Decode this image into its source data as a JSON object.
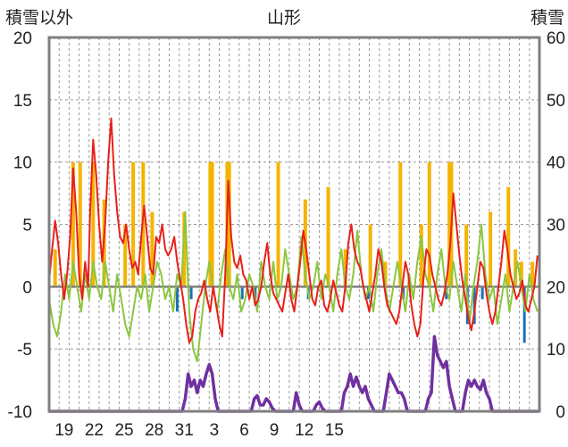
{
  "chart_data": {
    "type": "line",
    "title": "山形",
    "left_axis_label": "積雪以外",
    "right_axis_label": "積雪",
    "y_left": {
      "range": [
        -10,
        20
      ],
      "ticks": [
        "20",
        "15",
        "10",
        "5",
        "0",
        "-5",
        "-10"
      ]
    },
    "y_right": {
      "range": [
        0,
        60
      ],
      "ticks": [
        "60",
        "50",
        "40",
        "30",
        "20",
        "10",
        "0"
      ]
    },
    "x_day_ticks": [
      "19",
      "22",
      "25",
      "28",
      "31",
      "3",
      "6",
      "9",
      "12",
      "15"
    ],
    "grid": {
      "horizontal": "dashed",
      "vertical": "dashed-daily"
    },
    "colors": {
      "temperature": "#e8201a",
      "precip_yellow": "#f5b400",
      "precip_blue": "#1f6fb5",
      "green": "#8cc63f",
      "snow_depth": "#7030a0",
      "frame": "#7f7f7f"
    },
    "temperature_red": [
      [
        0,
        0.5
      ],
      [
        0.3,
        3
      ],
      [
        0.6,
        5.3
      ],
      [
        0.9,
        3.5
      ],
      [
        1.2,
        1
      ],
      [
        1.5,
        -1
      ],
      [
        1.8,
        1
      ],
      [
        2.1,
        4
      ],
      [
        2.4,
        9.5
      ],
      [
        2.7,
        6
      ],
      [
        3.0,
        1
      ],
      [
        3.3,
        -1
      ],
      [
        3.6,
        2
      ],
      [
        3.9,
        0
      ],
      [
        4.1,
        6
      ],
      [
        4.4,
        11.8
      ],
      [
        4.7,
        9
      ],
      [
        5.0,
        5
      ],
      [
        5.3,
        2
      ],
      [
        5.6,
        5
      ],
      [
        5.9,
        10
      ],
      [
        6.2,
        13.5
      ],
      [
        6.5,
        9
      ],
      [
        6.8,
        6
      ],
      [
        7.1,
        4
      ],
      [
        7.4,
        3.5
      ],
      [
        7.7,
        5
      ],
      [
        8.0,
        3
      ],
      [
        8.3,
        1.5
      ],
      [
        8.6,
        2
      ],
      [
        8.9,
        1
      ],
      [
        9.2,
        4
      ],
      [
        9.5,
        6.5
      ],
      [
        9.8,
        4
      ],
      [
        10.1,
        1.5
      ],
      [
        10.4,
        1
      ],
      [
        10.7,
        4
      ],
      [
        11.0,
        3.5
      ],
      [
        11.3,
        5
      ],
      [
        11.6,
        3
      ],
      [
        11.9,
        2.5
      ],
      [
        12.2,
        3
      ],
      [
        12.5,
        4
      ],
      [
        12.8,
        2
      ],
      [
        13.1,
        0.5
      ],
      [
        13.4,
        -1
      ],
      [
        13.7,
        -3
      ],
      [
        14.0,
        -4.5
      ],
      [
        14.3,
        -4
      ],
      [
        14.6,
        -2
      ],
      [
        14.9,
        -1
      ],
      [
        15.2,
        -0.5
      ],
      [
        15.5,
        0.5
      ],
      [
        15.8,
        -1
      ],
      [
        16.1,
        -2
      ],
      [
        16.4,
        0
      ],
      [
        16.7,
        -1.5
      ],
      [
        17.0,
        -3
      ],
      [
        17.3,
        -4
      ],
      [
        17.6,
        1
      ],
      [
        17.9,
        8.5
      ],
      [
        18.2,
        4
      ],
      [
        18.5,
        2
      ],
      [
        18.8,
        1.5
      ],
      [
        19.1,
        2.5
      ],
      [
        19.4,
        1
      ],
      [
        19.7,
        0.5
      ],
      [
        20.0,
        -1
      ],
      [
        20.3,
        0
      ],
      [
        20.6,
        -1.5
      ],
      [
        20.9,
        -1
      ],
      [
        21.2,
        0
      ],
      [
        21.5,
        2
      ],
      [
        21.8,
        3.5
      ],
      [
        22.1,
        1
      ],
      [
        22.4,
        -0.5
      ],
      [
        22.7,
        -1
      ],
      [
        23.0,
        -1.5
      ],
      [
        23.3,
        -2
      ],
      [
        23.6,
        -0.5
      ],
      [
        23.9,
        1
      ],
      [
        24.2,
        -1
      ],
      [
        24.5,
        -2
      ],
      [
        24.8,
        0
      ],
      [
        25.1,
        2
      ],
      [
        25.4,
        4.5
      ],
      [
        25.7,
        3
      ],
      [
        26.0,
        1
      ],
      [
        26.3,
        -1
      ],
      [
        26.6,
        -1.5
      ],
      [
        26.9,
        0
      ],
      [
        27.2,
        0.5
      ],
      [
        27.5,
        -1.5
      ],
      [
        27.8,
        -2
      ],
      [
        28.1,
        -1
      ],
      [
        28.4,
        0.5
      ],
      [
        28.7,
        -0.5
      ],
      [
        29.0,
        -1.5
      ],
      [
        29.3,
        -2
      ],
      [
        29.6,
        0
      ],
      [
        29.9,
        3.5
      ],
      [
        30.2,
        5
      ],
      [
        30.5,
        3
      ],
      [
        30.8,
        2
      ],
      [
        31.1,
        1.5
      ],
      [
        31.4,
        0
      ],
      [
        31.7,
        -1
      ],
      [
        32.0,
        -2
      ],
      [
        32.3,
        -0.5
      ],
      [
        32.6,
        1
      ],
      [
        32.9,
        3
      ],
      [
        33.2,
        2
      ],
      [
        33.5,
        0
      ],
      [
        33.8,
        -1.5
      ],
      [
        34.1,
        -2
      ],
      [
        34.4,
        -2.5
      ],
      [
        34.7,
        -3
      ],
      [
        35.0,
        -2
      ],
      [
        35.3,
        0
      ],
      [
        35.6,
        2
      ],
      [
        35.9,
        1
      ],
      [
        36.2,
        -1.5
      ],
      [
        36.5,
        -3
      ],
      [
        36.8,
        -4
      ],
      [
        37.1,
        -3
      ],
      [
        37.4,
        0.5
      ],
      [
        37.7,
        3
      ],
      [
        38.0,
        2.5
      ],
      [
        38.3,
        1
      ],
      [
        38.6,
        0
      ],
      [
        38.9,
        -1
      ],
      [
        39.2,
        -1.5
      ],
      [
        39.5,
        -0.5
      ],
      [
        39.8,
        1
      ],
      [
        40.1,
        3.5
      ],
      [
        40.4,
        7.5
      ],
      [
        40.7,
        5
      ],
      [
        41.0,
        2.5
      ],
      [
        41.3,
        0.5
      ],
      [
        41.6,
        -1
      ],
      [
        41.9,
        -2.5
      ],
      [
        42.2,
        -3.5
      ],
      [
        42.5,
        -2
      ],
      [
        42.8,
        0
      ],
      [
        43.1,
        2
      ],
      [
        43.4,
        1.5
      ],
      [
        43.7,
        -0.5
      ],
      [
        44.0,
        -2
      ],
      [
        44.3,
        -3
      ],
      [
        44.6,
        -2
      ],
      [
        44.9,
        0
      ],
      [
        45.2,
        2
      ],
      [
        45.5,
        4.5
      ],
      [
        45.8,
        3
      ],
      [
        46.1,
        1
      ],
      [
        46.4,
        0
      ],
      [
        46.7,
        -1
      ],
      [
        47.0,
        -0.5
      ],
      [
        47.3,
        0.5
      ],
      [
        47.6,
        -1.5
      ],
      [
        47.9,
        -2
      ],
      [
        48.2,
        -1
      ],
      [
        48.5,
        0
      ],
      [
        48.8,
        2.5
      ]
    ],
    "green_series": [
      [
        0,
        -1
      ],
      [
        0.4,
        -3
      ],
      [
        0.8,
        -4
      ],
      [
        1.2,
        -2
      ],
      [
        1.6,
        1
      ],
      [
        2.0,
        -1
      ],
      [
        2.4,
        2
      ],
      [
        2.8,
        0
      ],
      [
        3.2,
        -2
      ],
      [
        3.6,
        1
      ],
      [
        4.0,
        -1
      ],
      [
        4.4,
        2
      ],
      [
        4.8,
        0
      ],
      [
        5.2,
        -1
      ],
      [
        5.6,
        2
      ],
      [
        6.0,
        0
      ],
      [
        6.4,
        -2
      ],
      [
        6.8,
        1
      ],
      [
        7.2,
        -1
      ],
      [
        7.6,
        -3
      ],
      [
        8.0,
        -4
      ],
      [
        8.4,
        -2
      ],
      [
        8.8,
        0
      ],
      [
        9.2,
        -1
      ],
      [
        9.6,
        1
      ],
      [
        10.0,
        -2
      ],
      [
        10.4,
        0
      ],
      [
        10.8,
        2
      ],
      [
        11.2,
        1
      ],
      [
        11.6,
        -1
      ],
      [
        12.0,
        0
      ],
      [
        12.4,
        -2
      ],
      [
        12.8,
        1
      ],
      [
        13.2,
        0
      ],
      [
        13.6,
        6
      ],
      [
        14.0,
        -2
      ],
      [
        14.4,
        -5
      ],
      [
        14.8,
        -6
      ],
      [
        15.2,
        -3
      ],
      [
        15.6,
        0
      ],
      [
        16.0,
        2
      ],
      [
        16.4,
        0
      ],
      [
        16.8,
        -2
      ],
      [
        17.2,
        1
      ],
      [
        17.6,
        3
      ],
      [
        18.0,
        0
      ],
      [
        18.4,
        -1
      ],
      [
        18.8,
        1
      ],
      [
        19.2,
        -2
      ],
      [
        19.6,
        -1
      ],
      [
        20.0,
        1
      ],
      [
        20.4,
        0
      ],
      [
        20.8,
        -2
      ],
      [
        21.2,
        2
      ],
      [
        21.6,
        0
      ],
      [
        22.0,
        -1
      ],
      [
        22.4,
        2
      ],
      [
        22.8,
        -1
      ],
      [
        23.2,
        0
      ],
      [
        23.6,
        3
      ],
      [
        24.0,
        1
      ],
      [
        24.4,
        -1
      ],
      [
        24.8,
        0
      ],
      [
        25.2,
        4
      ],
      [
        25.6,
        1
      ],
      [
        26.0,
        -1
      ],
      [
        26.4,
        0
      ],
      [
        26.8,
        2
      ],
      [
        27.2,
        -1
      ],
      [
        27.6,
        1
      ],
      [
        28.0,
        0
      ],
      [
        28.4,
        -2
      ],
      [
        28.8,
        1
      ],
      [
        29.2,
        3
      ],
      [
        29.6,
        0
      ],
      [
        30.0,
        -1
      ],
      [
        30.4,
        1
      ],
      [
        30.8,
        4.5
      ],
      [
        31.2,
        1
      ],
      [
        31.6,
        -1
      ],
      [
        32.0,
        0
      ],
      [
        32.4,
        -2
      ],
      [
        32.8,
        1
      ],
      [
        33.2,
        3
      ],
      [
        33.6,
        0
      ],
      [
        34.0,
        -2
      ],
      [
        34.4,
        0
      ],
      [
        34.8,
        2
      ],
      [
        35.2,
        0
      ],
      [
        35.6,
        -2
      ],
      [
        36.0,
        1
      ],
      [
        36.4,
        -1
      ],
      [
        36.8,
        2
      ],
      [
        37.2,
        4
      ],
      [
        37.6,
        1
      ],
      [
        38.0,
        0
      ],
      [
        38.4,
        -2
      ],
      [
        38.8,
        1
      ],
      [
        39.2,
        3
      ],
      [
        39.6,
        0
      ],
      [
        40.0,
        -1
      ],
      [
        40.4,
        2
      ],
      [
        40.8,
        0
      ],
      [
        41.2,
        -2
      ],
      [
        41.6,
        1
      ],
      [
        42.0,
        -3
      ],
      [
        42.4,
        0
      ],
      [
        42.8,
        2
      ],
      [
        43.2,
        5
      ],
      [
        43.6,
        1
      ],
      [
        44.0,
        -1
      ],
      [
        44.4,
        0
      ],
      [
        44.8,
        -3
      ],
      [
        45.2,
        -1
      ],
      [
        45.6,
        1
      ],
      [
        46.0,
        -2
      ],
      [
        46.4,
        0
      ],
      [
        46.8,
        2
      ],
      [
        47.2,
        0
      ],
      [
        47.6,
        -2
      ],
      [
        48.0,
        1
      ],
      [
        48.4,
        -1
      ],
      [
        48.8,
        -2
      ]
    ],
    "precip_yellow_bars": [
      [
        0.6,
        3
      ],
      [
        2.4,
        10
      ],
      [
        3.1,
        10
      ],
      [
        4.4,
        10
      ],
      [
        5.5,
        7
      ],
      [
        7.6,
        5
      ],
      [
        8.4,
        10
      ],
      [
        9.4,
        10
      ],
      [
        10.3,
        6
      ],
      [
        13.5,
        6
      ],
      [
        16.1,
        10
      ],
      [
        16.3,
        10
      ],
      [
        17.8,
        10
      ],
      [
        18.0,
        10
      ],
      [
        22.9,
        10
      ],
      [
        25.6,
        7
      ],
      [
        27.9,
        8
      ],
      [
        29.6,
        3
      ],
      [
        32.1,
        5
      ],
      [
        33.6,
        2
      ],
      [
        35.1,
        10
      ],
      [
        37.2,
        5
      ],
      [
        38.0,
        10
      ],
      [
        40.0,
        10
      ],
      [
        40.2,
        10
      ],
      [
        41.7,
        5
      ],
      [
        44.1,
        6
      ],
      [
        45.9,
        8
      ],
      [
        46.6,
        3
      ],
      [
        47.2,
        2
      ],
      [
        48.3,
        2
      ]
    ],
    "precip_blue_bars": [
      [
        12.8,
        -2
      ],
      [
        14.2,
        -1
      ],
      [
        19.3,
        -1
      ],
      [
        20.6,
        -1
      ],
      [
        25.9,
        -1
      ],
      [
        31.9,
        -1
      ],
      [
        35.4,
        -1
      ],
      [
        39.7,
        -1
      ],
      [
        41.8,
        -3
      ],
      [
        42.5,
        -3
      ],
      [
        43.3,
        -1
      ],
      [
        47.5,
        -4.5
      ]
    ],
    "snow_depth_purple": [
      [
        0,
        0
      ],
      [
        13.3,
        0
      ],
      [
        13.6,
        2
      ],
      [
        13.9,
        6
      ],
      [
        14.2,
        4
      ],
      [
        14.5,
        5
      ],
      [
        14.8,
        3
      ],
      [
        15.1,
        5
      ],
      [
        15.4,
        4
      ],
      [
        15.7,
        6
      ],
      [
        16.0,
        7.5
      ],
      [
        16.3,
        6
      ],
      [
        16.6,
        2
      ],
      [
        16.9,
        0
      ],
      [
        20.2,
        0
      ],
      [
        20.5,
        2
      ],
      [
        20.8,
        2.5
      ],
      [
        21.1,
        1
      ],
      [
        21.4,
        1
      ],
      [
        21.7,
        2
      ],
      [
        22.0,
        1.5
      ],
      [
        22.3,
        0.5
      ],
      [
        22.6,
        0
      ],
      [
        24.4,
        0
      ],
      [
        24.7,
        3
      ],
      [
        25.0,
        1
      ],
      [
        25.3,
        0
      ],
      [
        26.4,
        0
      ],
      [
        26.7,
        1
      ],
      [
        27.0,
        1.5
      ],
      [
        27.3,
        0.5
      ],
      [
        27.6,
        0
      ],
      [
        29.2,
        0
      ],
      [
        29.5,
        3
      ],
      [
        29.8,
        4
      ],
      [
        30.1,
        6
      ],
      [
        30.4,
        4
      ],
      [
        30.7,
        5.5
      ],
      [
        31.0,
        4
      ],
      [
        31.3,
        3
      ],
      [
        31.6,
        4
      ],
      [
        31.9,
        2
      ],
      [
        32.2,
        1
      ],
      [
        32.5,
        0
      ],
      [
        33.4,
        0
      ],
      [
        33.7,
        3
      ],
      [
        34.0,
        6
      ],
      [
        34.3,
        5
      ],
      [
        34.6,
        4
      ],
      [
        34.9,
        3
      ],
      [
        35.2,
        3
      ],
      [
        35.5,
        2
      ],
      [
        35.8,
        0
      ],
      [
        37.6,
        0
      ],
      [
        37.9,
        2
      ],
      [
        38.2,
        3
      ],
      [
        38.5,
        12
      ],
      [
        38.8,
        9
      ],
      [
        39.1,
        8
      ],
      [
        39.4,
        7
      ],
      [
        39.7,
        8
      ],
      [
        40.0,
        4
      ],
      [
        40.3,
        2
      ],
      [
        40.6,
        0
      ],
      [
        41.3,
        0
      ],
      [
        41.6,
        3
      ],
      [
        41.9,
        5
      ],
      [
        42.2,
        4
      ],
      [
        42.5,
        5
      ],
      [
        42.8,
        4
      ],
      [
        43.1,
        3.5
      ],
      [
        43.4,
        5
      ],
      [
        43.7,
        3
      ],
      [
        44.0,
        2
      ],
      [
        44.3,
        0
      ],
      [
        48.9,
        0
      ]
    ]
  }
}
